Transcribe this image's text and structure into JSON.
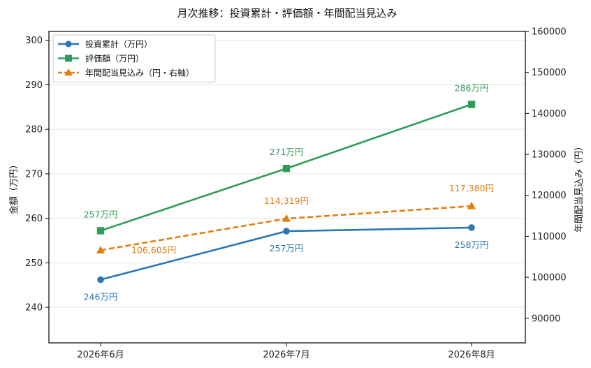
{
  "chart_data": {
    "type": "line",
    "title": "月次推移：投資累計・評価額・年間配当見込み",
    "categories": [
      "2026年6月",
      "2026年7月",
      "2026年8月"
    ],
    "ylabel_left": "金額（万円）",
    "ylabel_right": "年間配当見込み（円）",
    "ylim_left": [
      232,
      302
    ],
    "ylim_right": [
      84000,
      160000
    ],
    "yticks_left": [
      240,
      250,
      260,
      270,
      280,
      290,
      300
    ],
    "yticks_right": [
      90000,
      100000,
      110000,
      120000,
      130000,
      140000,
      150000,
      160000
    ],
    "grid": true,
    "legend_position": "top-left",
    "series": [
      {
        "name": "投資累計（万円）",
        "axis": "left",
        "values": [
          246.2,
          257.1,
          257.9
        ],
        "labels": [
          "246万円",
          "257万円",
          "258万円"
        ],
        "color": "#2a77b4",
        "marker": "circle",
        "dash": false,
        "label_pos": "below"
      },
      {
        "name": "評価額（万円）",
        "axis": "left",
        "values": [
          257.2,
          271.2,
          285.6
        ],
        "labels": [
          "257万円",
          "271万円",
          "286万円"
        ],
        "color": "#2e9c58",
        "marker": "square",
        "dash": false,
        "label_pos": "above"
      },
      {
        "name": "年間配当見込み（円・右軸）",
        "axis": "right",
        "values": [
          106605,
          114319,
          117380
        ],
        "labels": [
          "106,605円",
          "114,319円",
          "117,380円"
        ],
        "color": "#df7f10",
        "marker": "triangle",
        "dash": true,
        "label_pos": "mixed"
      }
    ]
  }
}
